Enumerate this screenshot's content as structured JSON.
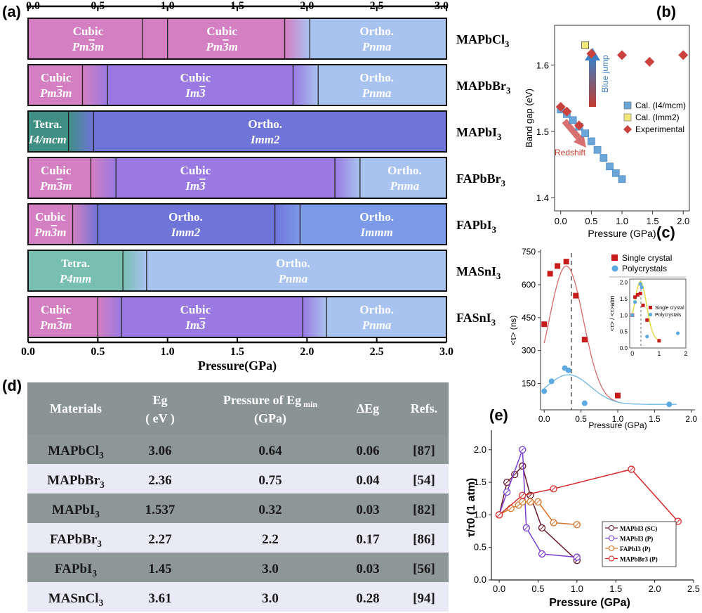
{
  "panels": {
    "a": "(a)",
    "b": "(b)",
    "c": "(c)",
    "d": "(d)",
    "e": "(e)"
  },
  "colors": {
    "cubic_pm3m": "#d47fc2",
    "cubic_im3": "#9a7ae2",
    "ortho_pnma": "#a9c3f0",
    "ortho_imm2": "#6f74d8",
    "ortho_immm": "#7c9ae8",
    "tetra_i4mcm": "#3f8f84",
    "tetra_p4mm": "#78bfb2",
    "table_dark": "#8e9797",
    "table_light": "#eaeaf6",
    "table_header": "#8a9494"
  },
  "chart_data": [
    {
      "panel": "a",
      "type": "bar",
      "title": "",
      "xlabel": "Pressure(GPa)",
      "ylabel": "",
      "xlim": [
        0,
        3.0
      ],
      "ticks": [
        "0.0",
        "0.5",
        "1.0",
        "1.5",
        "2.0",
        "2.5",
        "3.0"
      ],
      "materials": [
        {
          "name": "MAPbCl",
          "sub": "3",
          "segments": [
            {
              "from": 0,
              "to": 0.82,
              "color": "cubic_pm3m",
              "name": "Cubic",
              "group": "Pm3m",
              "label_at": 0.43
            },
            {
              "from": 0.82,
              "to": 1.0,
              "color": "cubic_pm3m",
              "name": "",
              "group": ""
            },
            {
              "from": 1.0,
              "to": 1.84,
              "color": "cubic_pm3m",
              "name": "Cubic",
              "group": "Pm3m",
              "label_at": 1.39
            },
            {
              "from": 1.84,
              "to": 2.02,
              "color": "mix",
              "name": "",
              "group": ""
            },
            {
              "from": 2.02,
              "to": 3.0,
              "color": "ortho_pnma",
              "name": "Ortho.",
              "group": "Pnma",
              "label_at": 2.5
            }
          ]
        },
        {
          "name": "MAPbBr",
          "sub": "3",
          "segments": [
            {
              "from": 0,
              "to": 0.39,
              "color": "cubic_pm3m",
              "name": "Cubic",
              "group": "Pm3m",
              "label_at": 0.2
            },
            {
              "from": 0.39,
              "to": 0.57,
              "color": "mix",
              "name": "",
              "group": ""
            },
            {
              "from": 0.57,
              "to": 1.9,
              "color": "cubic_im3",
              "name": "Cubic",
              "group": "Im3",
              "label_at": 1.2
            },
            {
              "from": 1.9,
              "to": 2.08,
              "color": "mix",
              "name": "",
              "group": ""
            },
            {
              "from": 2.08,
              "to": 3.0,
              "color": "ortho_pnma",
              "name": "Ortho.",
              "group": "Pnma",
              "label_at": 2.5
            }
          ]
        },
        {
          "name": "MAPbI",
          "sub": "3",
          "segments": [
            {
              "from": 0,
              "to": 0.29,
              "color": "tetra_i4mcm",
              "name": "Tetra.",
              "group": "I4/mcm",
              "label_at": 0.14
            },
            {
              "from": 0.29,
              "to": 0.47,
              "color": "mix",
              "name": "",
              "group": ""
            },
            {
              "from": 0.47,
              "to": 3.0,
              "color": "ortho_imm2",
              "name": "Ortho.",
              "group": "Imm2",
              "label_at": 1.7
            }
          ]
        },
        {
          "name": "FAPbBr",
          "sub": "3",
          "segments": [
            {
              "from": 0,
              "to": 0.45,
              "color": "cubic_pm3m",
              "name": "Cubic",
              "group": "Pm3m",
              "label_at": 0.2
            },
            {
              "from": 0.45,
              "to": 0.63,
              "color": "mix",
              "name": "",
              "group": ""
            },
            {
              "from": 0.63,
              "to": 2.2,
              "color": "cubic_im3",
              "name": "Cubic",
              "group": "Im3",
              "label_at": 1.2
            },
            {
              "from": 2.2,
              "to": 2.38,
              "color": "mix",
              "name": "",
              "group": ""
            },
            {
              "from": 2.38,
              "to": 3.0,
              "color": "ortho_pnma",
              "name": "Ortho.",
              "group": "Pnma",
              "label_at": 2.7
            }
          ]
        },
        {
          "name": "FAPbI",
          "sub": "3",
          "segments": [
            {
              "from": 0,
              "to": 0.32,
              "color": "cubic_pm3m",
              "name": "Cubic",
              "group": "Pm3m",
              "label_at": 0.16
            },
            {
              "from": 0.32,
              "to": 0.5,
              "color": "mix",
              "name": "",
              "group": ""
            },
            {
              "from": 0.5,
              "to": 1.77,
              "color": "ortho_imm2",
              "name": "Ortho.",
              "group": "Imm2",
              "label_at": 1.13
            },
            {
              "from": 1.77,
              "to": 1.95,
              "color": "mix",
              "name": "",
              "group": ""
            },
            {
              "from": 1.95,
              "to": 3.0,
              "color": "ortho_immm",
              "name": "Ortho.",
              "group": "Immm",
              "label_at": 2.5
            }
          ]
        },
        {
          "name": "MASnI",
          "sub": "3",
          "segments": [
            {
              "from": 0,
              "to": 0.68,
              "color": "tetra_p4mm",
              "name": "Tetra.",
              "group": "P4mm",
              "label_at": 0.34
            },
            {
              "from": 0.68,
              "to": 0.85,
              "color": "mix",
              "name": "",
              "group": ""
            },
            {
              "from": 0.85,
              "to": 3.0,
              "color": "ortho_pnma",
              "name": "Ortho.",
              "group": "Pnma",
              "label_at": 1.9
            }
          ]
        },
        {
          "name": "FASnI",
          "sub": "3",
          "segments": [
            {
              "from": 0,
              "to": 0.5,
              "color": "cubic_pm3m",
              "name": "Cubic",
              "group": "Pm3m",
              "label_at": 0.2
            },
            {
              "from": 0.5,
              "to": 0.67,
              "color": "mix",
              "name": "",
              "group": ""
            },
            {
              "from": 0.67,
              "to": 1.97,
              "color": "cubic_im3",
              "name": "Cubic",
              "group": "Im3",
              "label_at": 1.2
            },
            {
              "from": 1.97,
              "to": 2.14,
              "color": "mix",
              "name": "",
              "group": ""
            },
            {
              "from": 2.14,
              "to": 3.0,
              "color": "ortho_pnma",
              "name": "Ortho.",
              "group": "Pnma",
              "label_at": 2.5
            }
          ]
        }
      ]
    },
    {
      "panel": "b",
      "type": "scatter",
      "xlabel": "Pressure (GPa)",
      "ylabel": "Band gap (eV)",
      "xlim": [
        -0.1,
        2.1
      ],
      "ylim": [
        1.38,
        1.66
      ],
      "xticks": [
        "0.0",
        "0.5",
        "1.0",
        "1.5",
        "2.0"
      ],
      "yticks": [
        "1.4",
        "1.5",
        "1.6"
      ],
      "annotations": {
        "blue_jump": "Blue jump",
        "redshift": "Redshift"
      },
      "series": [
        {
          "name": "Cal. (I4/mcm)",
          "marker": "square",
          "color": "#6aa6d8",
          "x": [
            0.0,
            0.1,
            0.2,
            0.3,
            0.4,
            0.5,
            0.6,
            0.7,
            0.8,
            0.9,
            1.0
          ],
          "y": [
            1.533,
            1.526,
            1.517,
            1.507,
            1.497,
            1.485,
            1.472,
            1.46,
            1.447,
            1.437,
            1.428
          ]
        },
        {
          "name": "Cal. (Imm2)",
          "marker": "square",
          "color": "#f2e77a",
          "x": [
            0.4
          ],
          "y": [
            1.63
          ]
        },
        {
          "name": "Experimental",
          "marker": "diamond",
          "color": "#c9423e",
          "x": [
            0.0,
            0.1,
            0.3,
            0.5,
            1.0,
            1.45,
            2.0
          ],
          "y": [
            1.537,
            1.53,
            1.509,
            1.617,
            1.615,
            1.605,
            1.615
          ]
        }
      ]
    },
    {
      "panel": "c",
      "type": "scatter",
      "xlabel": "Pressure (GPa)",
      "ylabel": "<τ> (ns)",
      "xlim": [
        -0.05,
        2.05
      ],
      "ylim": [
        30,
        760
      ],
      "xticks": [
        "0.0",
        "0.5",
        "1.0",
        "1.5",
        "2.0"
      ],
      "yticks": [
        "150",
        "300",
        "450",
        "600",
        "750"
      ],
      "series": [
        {
          "name": "Single crystal",
          "marker": "square",
          "color": "#c81c1c",
          "x": [
            0.0,
            0.08,
            0.18,
            0.3,
            0.43,
            0.55,
            1.0
          ],
          "y": [
            420,
            650,
            685,
            705,
            550,
            350,
            95
          ]
        },
        {
          "name": "Polycrystals",
          "marker": "circle",
          "color": "#5ba9e0",
          "x": [
            0.0,
            0.1,
            0.28,
            0.33,
            0.55,
            1.7
          ],
          "y": [
            115,
            160,
            220,
            210,
            60,
            55
          ]
        }
      ],
      "inset": {
        "ylabel": "<τ> / <τ>atm",
        "xticks": [
          "0",
          "1",
          "2"
        ],
        "yticks": [
          "0.0",
          "0.5",
          "1.0",
          "1.5",
          "2.0"
        ],
        "series": [
          {
            "name": "Single crystal",
            "marker": "square",
            "color": "#c81c1c",
            "x": [
              0.0,
              0.1,
              0.2,
              0.3,
              0.4,
              0.55,
              1.0
            ],
            "y": [
              1.0,
              1.55,
              1.62,
              1.66,
              1.3,
              0.85,
              0.22
            ]
          },
          {
            "name": "Polycrystals",
            "marker": "circle",
            "color": "#5ba9e0",
            "x": [
              0.0,
              0.1,
              0.3,
              0.35,
              0.55,
              1.7
            ],
            "y": [
              1.0,
              1.4,
              1.95,
              1.85,
              0.35,
              0.45
            ]
          }
        ]
      }
    },
    {
      "panel": "d",
      "type": "table",
      "columns": [
        {
          "line1": "Materials",
          "line2": ""
        },
        {
          "line1": "Eg",
          "line2": "( eV )"
        },
        {
          "line1": "Pressure of Eg min",
          "line2": "(GPa)"
        },
        {
          "line1": "ΔEg",
          "line2": ""
        },
        {
          "line1": "Refs.",
          "line2": ""
        }
      ],
      "rows": [
        {
          "material": "MAPbCl",
          "sub": "3",
          "eg": "3.06",
          "pressure": "0.64",
          "deg": "0.06",
          "ref": "[87]"
        },
        {
          "material": "MAPbBr",
          "sub": "3",
          "eg": "2.36",
          "pressure": "0.75",
          "deg": "0.04",
          "ref": "[54]"
        },
        {
          "material": "MAPbI",
          "sub": "3",
          "eg": "1.537",
          "pressure": "0.32",
          "deg": "0.03",
          "ref": "[82]"
        },
        {
          "material": "FAPbBr",
          "sub": "3",
          "eg": "2.27",
          "pressure": "2.2",
          "deg": "0.17",
          "ref": "[86]"
        },
        {
          "material": "FAPbI",
          "sub": "3",
          "eg": "1.45",
          "pressure": "3.0",
          "deg": "0.03",
          "ref": "[56]"
        },
        {
          "material": "MASnCl",
          "sub": "3",
          "eg": "3.61",
          "pressure": "3.0",
          "deg": "0.28",
          "ref": "[94]"
        }
      ]
    },
    {
      "panel": "e",
      "type": "line",
      "xlabel": "Pressure (GPa)",
      "ylabel": "τ/τ0 (1 atm)",
      "xlim": [
        -0.1,
        2.5
      ],
      "ylim": [
        0.0,
        2.3
      ],
      "xticks": [
        "0.0",
        "0.5",
        "1.0",
        "1.5",
        "2.0",
        "2.5"
      ],
      "yticks": [
        "0.0",
        "0.5",
        "1.0",
        "1.5",
        "2.0"
      ],
      "series": [
        {
          "name": "MAPbI3 (SC)",
          "color": "#6b1d2e",
          "x": [
            0.0,
            0.1,
            0.2,
            0.3,
            0.4,
            0.55,
            1.0
          ],
          "y": [
            1.0,
            1.5,
            1.62,
            1.75,
            1.3,
            0.8,
            0.3
          ]
        },
        {
          "name": "MAPbI3 (P)",
          "color": "#7b3fd0",
          "x": [
            0.0,
            0.1,
            0.3,
            0.35,
            0.55,
            1.0
          ],
          "y": [
            1.0,
            1.35,
            2.0,
            0.8,
            0.4,
            0.35
          ]
        },
        {
          "name": "FAPbI3 (P)",
          "color": "#d8742a",
          "x": [
            0.0,
            0.15,
            0.25,
            0.3,
            0.4,
            0.5,
            0.7,
            1.0
          ],
          "y": [
            1.0,
            1.1,
            1.15,
            1.2,
            1.2,
            1.2,
            0.88,
            0.85
          ]
        },
        {
          "name": "MAPbBr3 (P)",
          "color": "#d62a2a",
          "x": [
            0.0,
            0.3,
            0.7,
            1.7,
            2.3
          ],
          "y": [
            1.0,
            1.3,
            1.4,
            1.7,
            0.9
          ]
        }
      ]
    }
  ]
}
